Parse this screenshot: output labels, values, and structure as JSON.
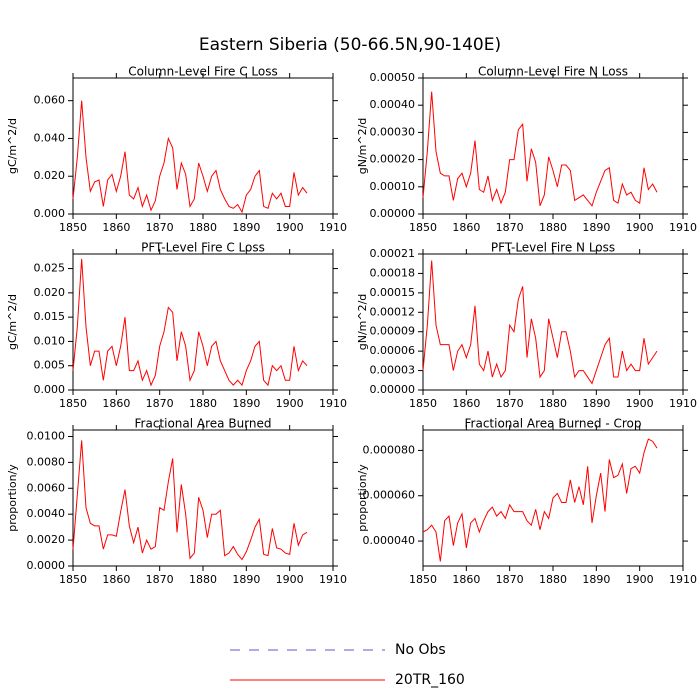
{
  "title": "Eastern Siberia (50-66.5N,90-140E)",
  "legend": [
    {
      "label": "No Obs",
      "color": "#5a5ad2",
      "dash": true
    },
    {
      "label": "20TR_160",
      "color": "#ff0000",
      "dash": false
    }
  ],
  "chart_data": [
    {
      "type": "line",
      "title": "Column-Level Fire C Loss",
      "y_label": "gC/m^2/d",
      "color": "#ff0000",
      "x": [
        1850,
        1851,
        1852,
        1853,
        1854,
        1855,
        1856,
        1857,
        1858,
        1859,
        1860,
        1861,
        1862,
        1863,
        1864,
        1865,
        1866,
        1867,
        1868,
        1869,
        1870,
        1871,
        1872,
        1873,
        1874,
        1875,
        1876,
        1877,
        1878,
        1879,
        1880,
        1881,
        1882,
        1883,
        1884,
        1885,
        1886,
        1887,
        1888,
        1889,
        1890,
        1891,
        1892,
        1893,
        1894,
        1895,
        1896,
        1897,
        1898,
        1899,
        1900,
        1901,
        1902,
        1903,
        1904
      ],
      "values": [
        0.008,
        0.03,
        0.06,
        0.03,
        0.012,
        0.017,
        0.018,
        0.004,
        0.018,
        0.021,
        0.012,
        0.02,
        0.033,
        0.01,
        0.008,
        0.014,
        0.004,
        0.01,
        0.002,
        0.007,
        0.02,
        0.027,
        0.04,
        0.035,
        0.013,
        0.027,
        0.021,
        0.004,
        0.008,
        0.027,
        0.02,
        0.012,
        0.02,
        0.023,
        0.013,
        0.008,
        0.004,
        0.003,
        0.005,
        0.001,
        0.01,
        0.013,
        0.02,
        0.023,
        0.004,
        0.003,
        0.011,
        0.008,
        0.011,
        0.004,
        0.004,
        0.022,
        0.01,
        0.014,
        0.011
      ],
      "xlim": [
        1850,
        1910
      ],
      "xticks": [
        1850,
        1860,
        1870,
        1880,
        1890,
        1900,
        1910
      ],
      "ylim": [
        0,
        0.072
      ],
      "yticks": [
        {
          "value": 0,
          "label": "0.000"
        },
        {
          "value": 0.02,
          "label": "0.020"
        },
        {
          "value": 0.04,
          "label": "0.040"
        },
        {
          "value": 0.06,
          "label": "0.060"
        }
      ]
    },
    {
      "type": "line",
      "title": "Column-Level Fire N Loss",
      "y_label": "gN/m^2/d",
      "color": "#ff0000",
      "x": [
        1850,
        1851,
        1852,
        1853,
        1854,
        1855,
        1856,
        1857,
        1858,
        1859,
        1860,
        1861,
        1862,
        1863,
        1864,
        1865,
        1866,
        1867,
        1868,
        1869,
        1870,
        1871,
        1872,
        1873,
        1874,
        1875,
        1876,
        1877,
        1878,
        1879,
        1880,
        1881,
        1882,
        1883,
        1884,
        1885,
        1886,
        1887,
        1888,
        1889,
        1890,
        1891,
        1892,
        1893,
        1894,
        1895,
        1896,
        1897,
        1898,
        1899,
        1900,
        1901,
        1902,
        1903,
        1904
      ],
      "values": [
        6e-05,
        0.00023,
        0.00045,
        0.00023,
        0.00015,
        0.00014,
        0.00014,
        5e-05,
        0.00013,
        0.00015,
        0.0001,
        0.00015,
        0.00027,
        9e-05,
        8e-05,
        0.00014,
        5e-05,
        9e-05,
        4e-05,
        8e-05,
        0.0002,
        0.0002,
        0.00031,
        0.00033,
        0.00012,
        0.00024,
        0.00019,
        3e-05,
        7e-05,
        0.00021,
        0.00016,
        0.0001,
        0.00018,
        0.00018,
        0.00016,
        5e-05,
        6e-05,
        7e-05,
        5e-05,
        3e-05,
        8e-05,
        0.00012,
        0.00016,
        0.00017,
        5e-05,
        4e-05,
        0.00011,
        7e-05,
        8e-05,
        5e-05,
        4e-05,
        0.00017,
        9e-05,
        0.00011,
        8e-05
      ],
      "xlim": [
        1850,
        1910
      ],
      "xticks": [
        1850,
        1860,
        1870,
        1880,
        1890,
        1900,
        1910
      ],
      "ylim": [
        0,
        0.0005
      ],
      "yticks": [
        {
          "value": 0,
          "label": "0.00000"
        },
        {
          "value": 0.0001,
          "label": "0.00010"
        },
        {
          "value": 0.0002,
          "label": "0.00020"
        },
        {
          "value": 0.0003,
          "label": "0.00030"
        },
        {
          "value": 0.0004,
          "label": "0.00040"
        },
        {
          "value": 0.0005,
          "label": "0.00050"
        }
      ]
    },
    {
      "type": "line",
      "title": "PFT-Level Fire C Loss",
      "y_label": "gC/m^2/d",
      "color": "#ff0000",
      "x": [
        1850,
        1851,
        1852,
        1853,
        1854,
        1855,
        1856,
        1857,
        1858,
        1859,
        1860,
        1861,
        1862,
        1863,
        1864,
        1865,
        1866,
        1867,
        1868,
        1869,
        1870,
        1871,
        1872,
        1873,
        1874,
        1875,
        1876,
        1877,
        1878,
        1879,
        1880,
        1881,
        1882,
        1883,
        1884,
        1885,
        1886,
        1887,
        1888,
        1889,
        1890,
        1891,
        1892,
        1893,
        1894,
        1895,
        1896,
        1897,
        1898,
        1899,
        1900,
        1901,
        1902,
        1903,
        1904
      ],
      "values": [
        0.004,
        0.013,
        0.027,
        0.013,
        0.005,
        0.008,
        0.008,
        0.002,
        0.008,
        0.009,
        0.005,
        0.009,
        0.015,
        0.004,
        0.004,
        0.006,
        0.002,
        0.004,
        0.001,
        0.003,
        0.009,
        0.012,
        0.017,
        0.016,
        0.006,
        0.012,
        0.009,
        0.002,
        0.004,
        0.012,
        0.009,
        0.005,
        0.009,
        0.01,
        0.006,
        0.004,
        0.002,
        0.001,
        0.002,
        0.001,
        0.004,
        0.006,
        0.009,
        0.01,
        0.002,
        0.001,
        0.005,
        0.004,
        0.005,
        0.002,
        0.002,
        0.009,
        0.004,
        0.006,
        0.005
      ],
      "xlim": [
        1850,
        1910
      ],
      "xticks": [
        1850,
        1860,
        1870,
        1880,
        1890,
        1900,
        1910
      ],
      "ylim": [
        0,
        0.028
      ],
      "yticks": [
        {
          "value": 0,
          "label": "0.000"
        },
        {
          "value": 0.005,
          "label": "0.005"
        },
        {
          "value": 0.01,
          "label": "0.010"
        },
        {
          "value": 0.015,
          "label": "0.015"
        },
        {
          "value": 0.02,
          "label": "0.020"
        },
        {
          "value": 0.025,
          "label": "0.025"
        }
      ]
    },
    {
      "type": "line",
      "title": "PFT-Level Fire N Loss",
      "y_label": "gN/m^2/d",
      "color": "#ff0000",
      "x": [
        1850,
        1851,
        1852,
        1853,
        1854,
        1855,
        1856,
        1857,
        1858,
        1859,
        1860,
        1861,
        1862,
        1863,
        1864,
        1865,
        1866,
        1867,
        1868,
        1869,
        1870,
        1871,
        1872,
        1873,
        1874,
        1875,
        1876,
        1877,
        1878,
        1879,
        1880,
        1881,
        1882,
        1883,
        1884,
        1885,
        1886,
        1887,
        1888,
        1889,
        1890,
        1891,
        1892,
        1893,
        1894,
        1895,
        1896,
        1897,
        1898,
        1899,
        1900,
        1901,
        1902,
        1903,
        1904
      ],
      "values": [
        3e-05,
        0.0001,
        0.0002,
        0.0001,
        7e-05,
        7e-05,
        7e-05,
        3e-05,
        6e-05,
        7e-05,
        5e-05,
        7e-05,
        0.00013,
        4e-05,
        3e-05,
        6e-05,
        2e-05,
        4e-05,
        2e-05,
        3e-05,
        0.0001,
        9e-05,
        0.00014,
        0.00016,
        5e-05,
        0.00011,
        8e-05,
        2e-05,
        3e-05,
        0.00011,
        8e-05,
        5e-05,
        9e-05,
        9e-05,
        6e-05,
        2e-05,
        3e-05,
        3e-05,
        2e-05,
        1e-05,
        3e-05,
        5e-05,
        7e-05,
        8e-05,
        2e-05,
        2e-05,
        6e-05,
        3e-05,
        4e-05,
        3e-05,
        3e-05,
        8e-05,
        4e-05,
        5e-05,
        6e-05
      ],
      "xlim": [
        1850,
        1910
      ],
      "xticks": [
        1850,
        1860,
        1870,
        1880,
        1890,
        1900,
        1910
      ],
      "ylim": [
        0,
        0.00021
      ],
      "yticks": [
        {
          "value": 0,
          "label": "0.00000"
        },
        {
          "value": 3e-05,
          "label": "0.00003"
        },
        {
          "value": 6e-05,
          "label": "0.00006"
        },
        {
          "value": 9e-05,
          "label": "0.00009"
        },
        {
          "value": 0.00012,
          "label": "0.00012"
        },
        {
          "value": 0.00015,
          "label": "0.00015"
        },
        {
          "value": 0.00018,
          "label": "0.00018"
        },
        {
          "value": 0.00021,
          "label": "0.00021"
        }
      ]
    },
    {
      "type": "line",
      "title": "Fractional Area Burned",
      "y_label": "proportion/y",
      "color": "#ff0000",
      "x": [
        1850,
        1851,
        1852,
        1853,
        1854,
        1855,
        1856,
        1857,
        1858,
        1859,
        1860,
        1861,
        1862,
        1863,
        1864,
        1865,
        1866,
        1867,
        1868,
        1869,
        1870,
        1871,
        1872,
        1873,
        1874,
        1875,
        1876,
        1877,
        1878,
        1879,
        1880,
        1881,
        1882,
        1883,
        1884,
        1885,
        1886,
        1887,
        1888,
        1889,
        1890,
        1891,
        1892,
        1893,
        1894,
        1895,
        1896,
        1897,
        1898,
        1899,
        1900,
        1901,
        1902,
        1903,
        1904
      ],
      "values": [
        0.0013,
        0.0055,
        0.0097,
        0.0045,
        0.0033,
        0.0031,
        0.0031,
        0.0013,
        0.0024,
        0.0024,
        0.0023,
        0.0042,
        0.0059,
        0.0031,
        0.0018,
        0.003,
        0.001,
        0.002,
        0.0013,
        0.0015,
        0.0045,
        0.0043,
        0.0065,
        0.0083,
        0.0026,
        0.0063,
        0.004,
        0.0006,
        0.001,
        0.0053,
        0.0043,
        0.0022,
        0.004,
        0.004,
        0.0043,
        0.0008,
        0.001,
        0.0015,
        0.0009,
        0.0005,
        0.0011,
        0.002,
        0.003,
        0.0036,
        0.0009,
        0.0008,
        0.0029,
        0.0014,
        0.0013,
        0.001,
        0.0009,
        0.0033,
        0.0016,
        0.0024,
        0.0026
      ],
      "xlim": [
        1850,
        1910
      ],
      "xticks": [
        1850,
        1860,
        1870,
        1880,
        1890,
        1900,
        1910
      ],
      "ylim": [
        0,
        0.0105
      ],
      "yticks": [
        {
          "value": 0,
          "label": "0.0000"
        },
        {
          "value": 0.002,
          "label": "0.0020"
        },
        {
          "value": 0.004,
          "label": "0.0040"
        },
        {
          "value": 0.006,
          "label": "0.0060"
        },
        {
          "value": 0.008,
          "label": "0.0080"
        },
        {
          "value": 0.01,
          "label": "0.0100"
        }
      ]
    },
    {
      "type": "line",
      "title": "Fractional Area Burned - Crop",
      "y_label": "proportion/y",
      "color": "#ff0000",
      "x": [
        1850,
        1851,
        1852,
        1853,
        1854,
        1855,
        1856,
        1857,
        1858,
        1859,
        1860,
        1861,
        1862,
        1863,
        1864,
        1865,
        1866,
        1867,
        1868,
        1869,
        1870,
        1871,
        1872,
        1873,
        1874,
        1875,
        1876,
        1877,
        1878,
        1879,
        1880,
        1881,
        1882,
        1883,
        1884,
        1885,
        1886,
        1887,
        1888,
        1889,
        1890,
        1891,
        1892,
        1893,
        1894,
        1895,
        1896,
        1897,
        1898,
        1899,
        1900,
        1901,
        1902,
        1903,
        1904
      ],
      "values": [
        4.4e-05,
        4.5e-05,
        4.7e-05,
        4.4e-05,
        3.1e-05,
        4.9e-05,
        5.1e-05,
        3.8e-05,
        4.8e-05,
        5.2e-05,
        3.7e-05,
        4.8e-05,
        5e-05,
        4.4e-05,
        4.9e-05,
        5.3e-05,
        5.5e-05,
        5.1e-05,
        5.3e-05,
        5e-05,
        5.6e-05,
        5.3e-05,
        5.3e-05,
        5.3e-05,
        4.9e-05,
        4.7e-05,
        5.4e-05,
        4.5e-05,
        5.3e-05,
        5e-05,
        5.9e-05,
        6.1e-05,
        5.7e-05,
        5.7e-05,
        6.7e-05,
        5.7e-05,
        6.4e-05,
        5.6e-05,
        7.3e-05,
        4.8e-05,
        6e-05,
        7e-05,
        5.3e-05,
        7.6e-05,
        6.8e-05,
        6.9e-05,
        7.4e-05,
        6.1e-05,
        7.2e-05,
        7.3e-05,
        7e-05,
        7.9e-05,
        8.5e-05,
        8.4e-05,
        8.1e-05
      ],
      "xlim": [
        1850,
        1910
      ],
      "xticks": [
        1850,
        1860,
        1870,
        1880,
        1890,
        1900,
        1910
      ],
      "ylim": [
        2.9e-05,
        8.9e-05
      ],
      "yticks": [
        {
          "value": 4e-05,
          "label": "0.000040"
        },
        {
          "value": 6e-05,
          "label": "0.000060"
        },
        {
          "value": 8e-05,
          "label": "0.000080"
        }
      ]
    }
  ]
}
